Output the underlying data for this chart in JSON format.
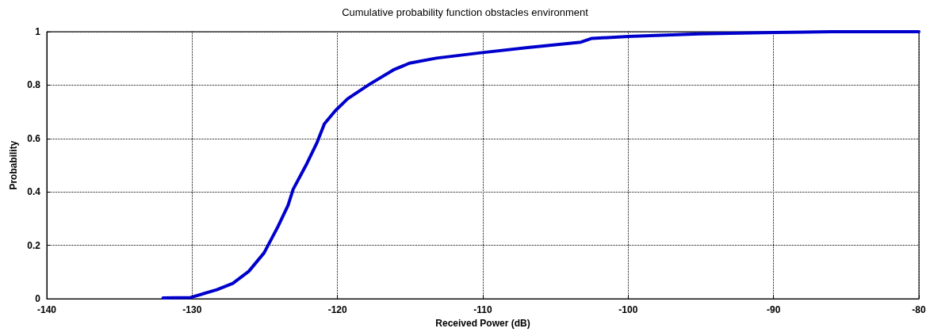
{
  "chart_data": {
    "type": "line",
    "title": "Cumulative probability function obstacles environment",
    "xlabel": "Received Power (dB)",
    "ylabel": "Probability",
    "x": [
      -132,
      -130.1,
      -128.3,
      -127.2,
      -126.1,
      -125.05,
      -124.1,
      -123.4,
      -123.05,
      -122.1,
      -121.4,
      -120.9,
      -120.15,
      -119.3,
      -117.8,
      -116.15,
      -115.05,
      -113.2,
      -110.15,
      -106.9,
      -103.25,
      -102.5,
      -100,
      -95.1,
      -90,
      -86,
      -80
    ],
    "series": [
      {
        "color": "#0000cc",
        "values": [
          0.003,
          0.005,
          0.034,
          0.058,
          0.103,
          0.172,
          0.27,
          0.35,
          0.41,
          0.507,
          0.586,
          0.655,
          0.704,
          0.749,
          0.803,
          0.857,
          0.882,
          0.901,
          0.921,
          0.941,
          0.961,
          0.975,
          0.982,
          0.992,
          0.997,
          1,
          1
        ]
      }
    ],
    "xlim": [
      -140,
      -80
    ],
    "xticks": [
      -140,
      -130,
      -120,
      -110,
      -100,
      -90,
      -80
    ],
    "ylim": [
      0,
      1
    ],
    "yticks": [
      0,
      0.2,
      0.4,
      0.6,
      0.8,
      1
    ],
    "grid": true,
    "marker": "none",
    "line_style": "solid"
  }
}
